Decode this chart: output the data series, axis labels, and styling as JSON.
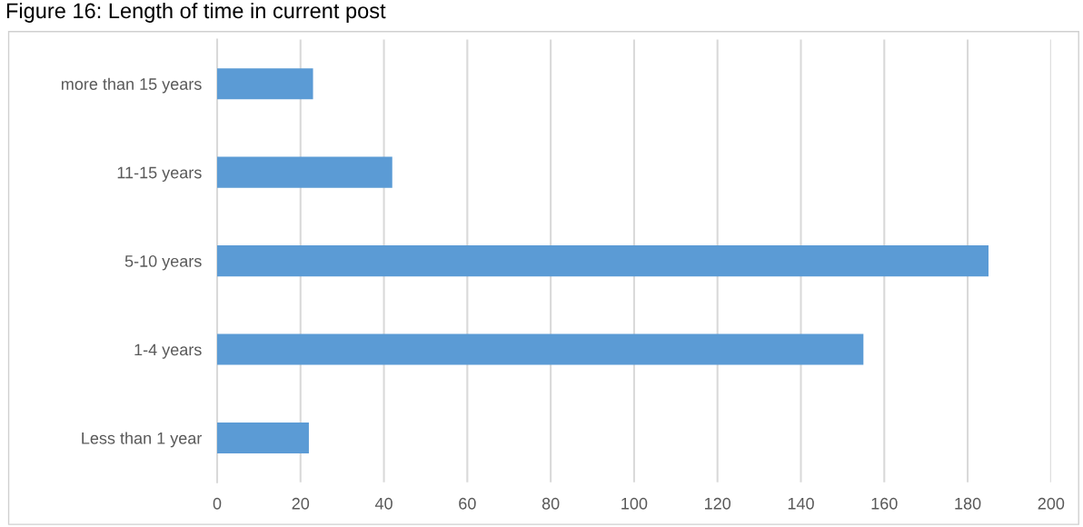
{
  "chart_data": {
    "type": "bar",
    "orientation": "horizontal",
    "title": "Figure 16: Length of time in current post",
    "categories": [
      "more than 15 years",
      "11-15 years",
      "5-10 years",
      "1-4 years",
      "Less than 1 year"
    ],
    "values": [
      23,
      42,
      185,
      155,
      22
    ],
    "color": "#5b9bd5",
    "xlim": [
      0,
      200
    ],
    "xticks": [
      0,
      20,
      40,
      60,
      80,
      100,
      120,
      140,
      160,
      180,
      200
    ],
    "grid": "x",
    "legend": false
  }
}
